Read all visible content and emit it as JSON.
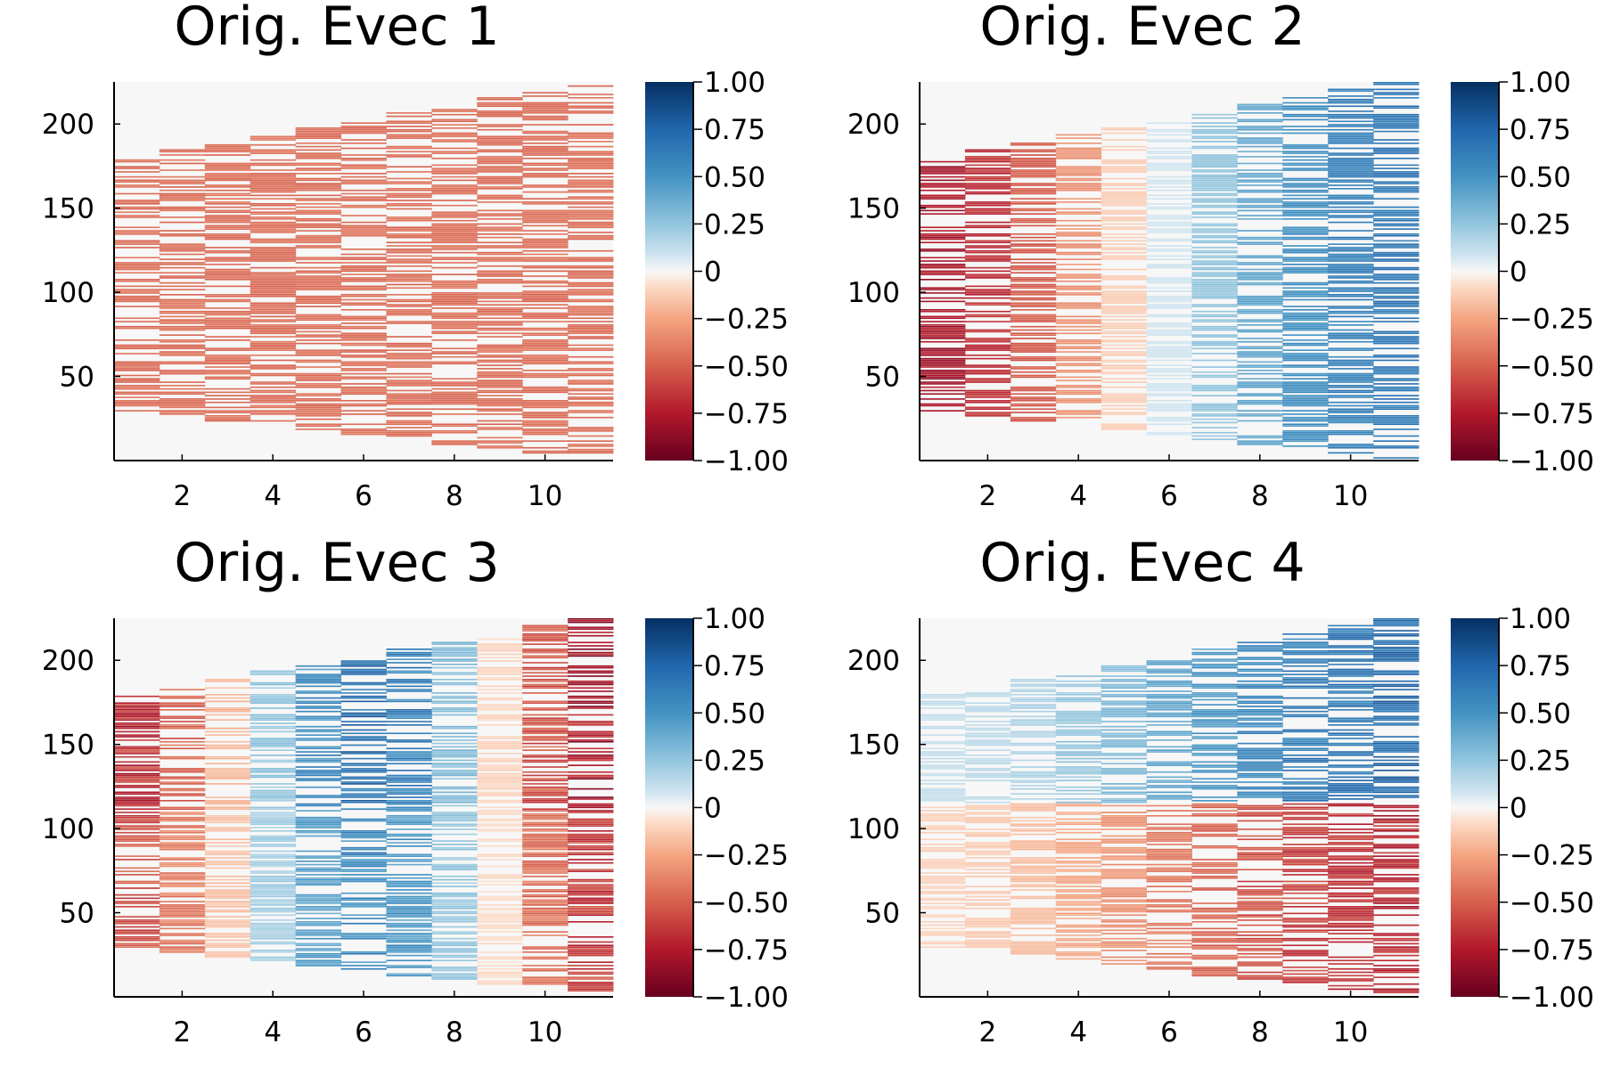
{
  "chart_data": [
    {
      "type": "heatmap",
      "title": "Orig. Evec 1",
      "x_range": [
        0.5,
        11.5
      ],
      "y_range": [
        0,
        225
      ],
      "x_ticks": [
        "2",
        "4",
        "6",
        "8",
        "10"
      ],
      "y_ticks": [
        "50",
        "100",
        "150",
        "200"
      ],
      "colorbar": {
        "range": [
          -1,
          1
        ],
        "ticks": [
          "1.00",
          "0.75",
          "0.50",
          "0.25",
          "0",
          "−0.25",
          "−0.50",
          "−0.75",
          "−1.00"
        ],
        "colormap": "RdBu"
      },
      "grid": false,
      "pattern": "band",
      "amplitude": [
        -0.45,
        -0.45,
        -0.45,
        -0.45,
        -0.45,
        -0.45,
        -0.45,
        -0.45,
        -0.45,
        -0.45,
        -0.45
      ]
    },
    {
      "type": "heatmap",
      "title": "Orig. Evec 2",
      "x_range": [
        0.5,
        11.5
      ],
      "y_range": [
        0,
        225
      ],
      "x_ticks": [
        "2",
        "4",
        "6",
        "8",
        "10"
      ],
      "y_ticks": [
        "50",
        "100",
        "150",
        "200"
      ],
      "colorbar": {
        "range": [
          -1,
          1
        ],
        "ticks": [
          "1.00",
          "0.75",
          "0.50",
          "0.25",
          "0",
          "−0.25",
          "−0.50",
          "−0.75",
          "−1.00"
        ],
        "colormap": "RdBu"
      },
      "grid": false,
      "pattern": "band",
      "amplitude": [
        -0.78,
        -0.68,
        -0.52,
        -0.32,
        -0.12,
        0.08,
        0.25,
        0.4,
        0.52,
        0.6,
        0.65
      ]
    },
    {
      "type": "heatmap",
      "title": "Orig. Evec 3",
      "x_range": [
        0.5,
        11.5
      ],
      "y_range": [
        0,
        225
      ],
      "x_ticks": [
        "2",
        "4",
        "6",
        "8",
        "10"
      ],
      "y_ticks": [
        "50",
        "100",
        "150",
        "200"
      ],
      "colorbar": {
        "range": [
          -1,
          1
        ],
        "ticks": [
          "1.00",
          "0.75",
          "0.50",
          "0.25",
          "0",
          "−0.25",
          "−0.50",
          "−0.75",
          "−1.00"
        ],
        "colormap": "RdBu"
      },
      "grid": false,
      "pattern": "wave",
      "amplitude": [
        -0.7,
        -0.5,
        -0.2,
        0.25,
        0.55,
        0.7,
        0.6,
        0.3,
        -0.1,
        -0.55,
        -0.8
      ]
    },
    {
      "type": "heatmap",
      "title": "Orig. Evec 4",
      "x_range": [
        0.5,
        11.5
      ],
      "y_range": [
        0,
        225
      ],
      "x_ticks": [
        "2",
        "4",
        "6",
        "8",
        "10"
      ],
      "y_ticks": [
        "50",
        "100",
        "150",
        "200"
      ],
      "colorbar": {
        "range": [
          -1,
          1
        ],
        "ticks": [
          "1.00",
          "0.75",
          "0.50",
          "0.25",
          "0",
          "−0.25",
          "−0.50",
          "−0.75",
          "−1.00"
        ],
        "colormap": "RdBu"
      },
      "grid": false,
      "pattern": "split",
      "amplitude": [
        0.12,
        0.14,
        0.18,
        0.25,
        0.33,
        0.42,
        0.5,
        0.58,
        0.65,
        0.7,
        0.75
      ]
    }
  ]
}
